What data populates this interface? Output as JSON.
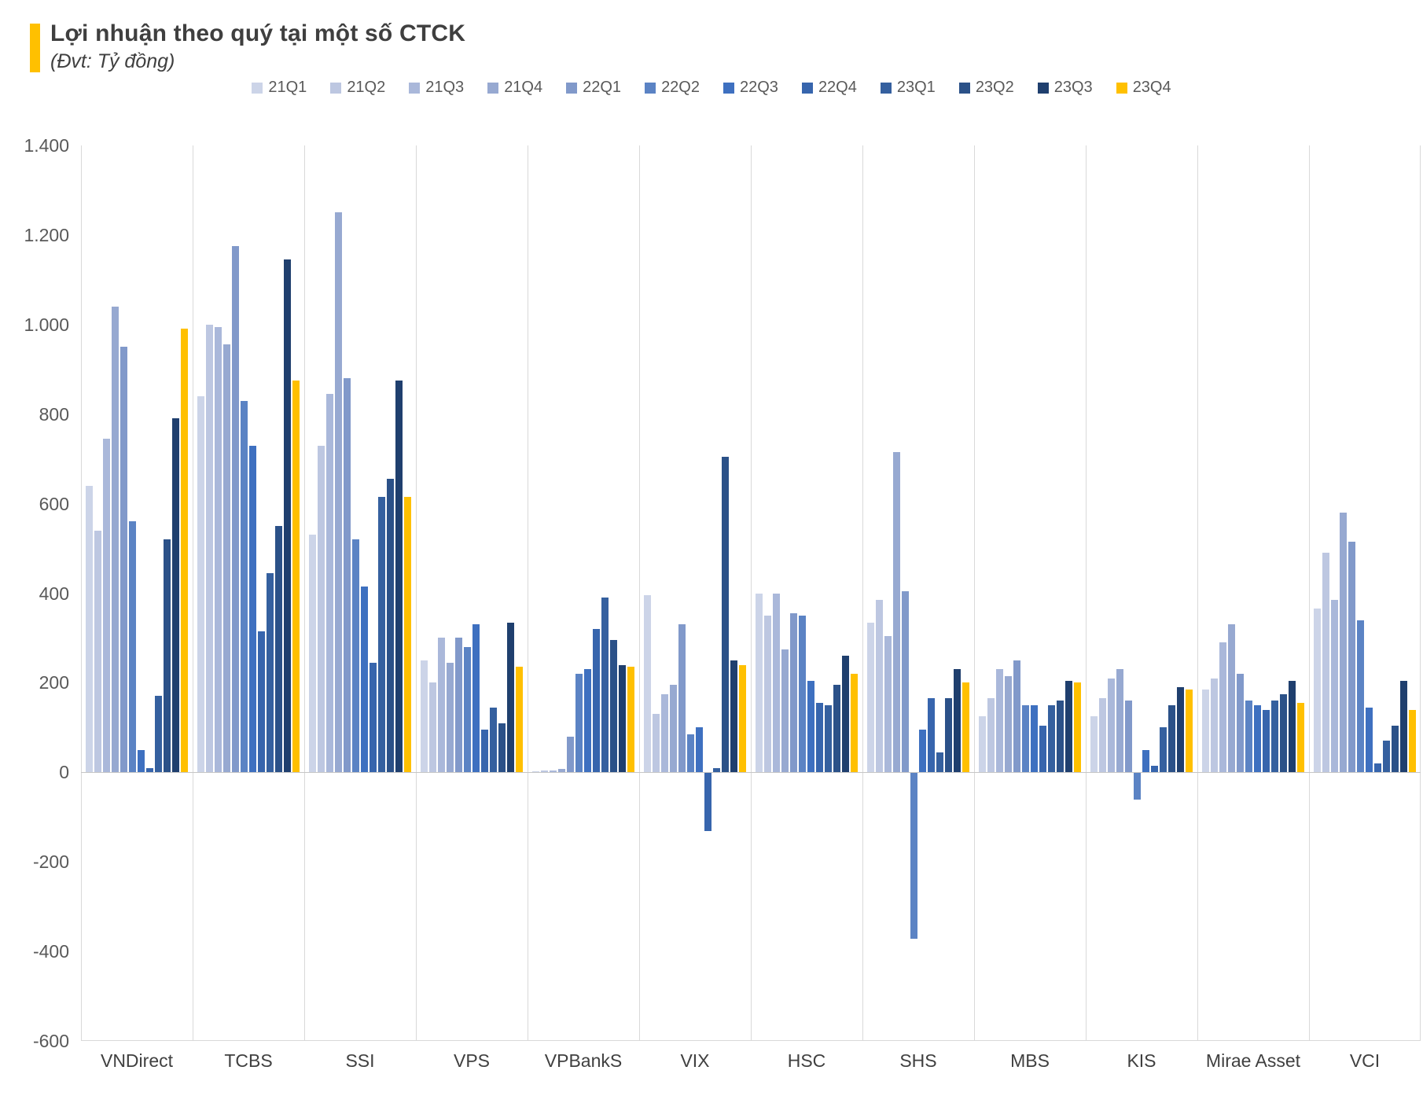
{
  "title": "Lợi nhuận theo quý tại một số CTCK",
  "subtitle": "(Đvt: Tỷ đồng)",
  "accent_color": "#FFC000",
  "chart_data": {
    "type": "bar",
    "title": "Lợi nhuận theo quý tại một số CTCK",
    "unit_label": "(Đvt: Tỷ đồng)",
    "categories": [
      "VNDirect",
      "TCBS",
      "SSI",
      "VPS",
      "VPBankS",
      "VIX",
      "HSC",
      "SHS",
      "MBS",
      "KIS",
      "Mirae Asset",
      "VCI"
    ],
    "series": [
      {
        "name": "21Q1",
        "color": "#ccd4e8",
        "values": [
          640,
          840,
          530,
          250,
          3,
          395,
          400,
          335,
          125,
          125,
          185,
          365
        ]
      },
      {
        "name": "21Q2",
        "color": "#bdc7e1",
        "values": [
          540,
          1000,
          730,
          200,
          4,
          130,
          350,
          385,
          165,
          165,
          210,
          490
        ]
      },
      {
        "name": "21Q3",
        "color": "#aab8da",
        "values": [
          745,
          995,
          845,
          300,
          4,
          175,
          400,
          305,
          230,
          210,
          290,
          385
        ]
      },
      {
        "name": "21Q4",
        "color": "#97a9d1",
        "values": [
          1040,
          955,
          1250,
          245,
          8,
          195,
          275,
          715,
          215,
          230,
          330,
          580
        ]
      },
      {
        "name": "22Q1",
        "color": "#8199ca",
        "values": [
          950,
          1175,
          880,
          300,
          80,
          330,
          355,
          405,
          250,
          160,
          220,
          515
        ]
      },
      {
        "name": "22Q2",
        "color": "#5b83c4",
        "values": [
          560,
          830,
          520,
          280,
          220,
          85,
          350,
          -370,
          150,
          -60,
          160,
          340
        ]
      },
      {
        "name": "22Q3",
        "color": "#3e70c0",
        "values": [
          50,
          730,
          415,
          330,
          230,
          100,
          205,
          95,
          150,
          50,
          150,
          145
        ]
      },
      {
        "name": "22Q4",
        "color": "#3765ad",
        "values": [
          10,
          315,
          245,
          95,
          320,
          -130,
          155,
          165,
          105,
          15,
          140,
          20
        ]
      },
      {
        "name": "23Q1",
        "color": "#35609f",
        "values": [
          170,
          445,
          615,
          145,
          390,
          10,
          150,
          45,
          150,
          100,
          160,
          70
        ]
      },
      {
        "name": "23Q2",
        "color": "#2b5188",
        "values": [
          520,
          550,
          655,
          110,
          295,
          705,
          195,
          165,
          160,
          150,
          175,
          105
        ]
      },
      {
        "name": "23Q3",
        "color": "#1f3f6e",
        "values": [
          790,
          1145,
          875,
          335,
          240,
          250,
          260,
          230,
          205,
          190,
          205,
          205
        ]
      },
      {
        "name": "23Q4",
        "color": "#ffc000",
        "values": [
          990,
          875,
          615,
          235,
          235,
          240,
          220,
          200,
          200,
          185,
          155,
          140
        ]
      }
    ],
    "ylim": [
      -600,
      1400
    ],
    "ytick_step": 200,
    "ytick_labels": [
      "1.400",
      "1.200",
      "1.000",
      "800",
      "600",
      "400",
      "200",
      "0",
      "-200",
      "-400",
      "-600"
    ],
    "grid": "vertical-category-separators",
    "legend_position": "top-center"
  }
}
